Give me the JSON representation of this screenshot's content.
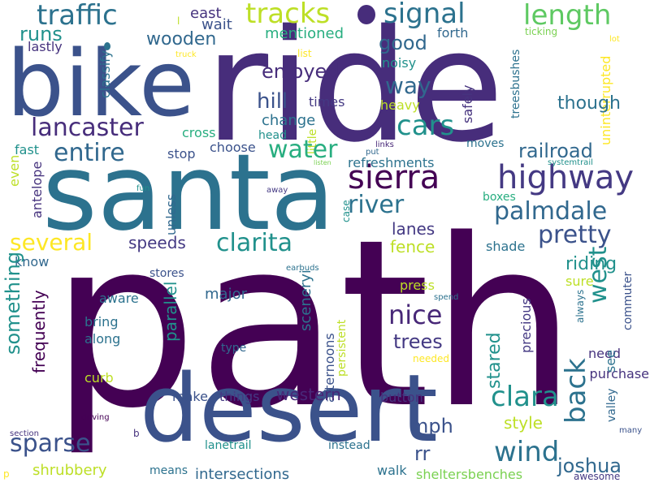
{
  "words": [
    {
      "text": "path",
      "color": "#440154"
    },
    {
      "text": "ride",
      "color": "#472d7b"
    },
    {
      "text": "santa",
      "color": "#2c728e"
    },
    {
      "text": "desert",
      "color": "#3b528b"
    },
    {
      "text": "bike",
      "color": "#3b528b"
    },
    {
      "text": "highway",
      "color": "#443983"
    },
    {
      "text": "sierra",
      "color": "#440154"
    },
    {
      "text": "traffic",
      "color": "#2c728e"
    },
    {
      "text": "tracks",
      "color": "#bddf26"
    },
    {
      "text": "signal",
      "color": "#2c728e"
    },
    {
      "text": "length",
      "color": "#5ec962"
    },
    {
      "text": "wooden",
      "color": "#31688e"
    },
    {
      "text": "runs",
      "color": "#21918c"
    },
    {
      "text": "east",
      "color": "#46337e"
    },
    {
      "text": "wait",
      "color": "#3b528b"
    },
    {
      "text": "mentioned",
      "color": "#28ae80"
    },
    {
      "text": "good",
      "color": "#31688e"
    },
    {
      "text": "forth",
      "color": "#31688e"
    },
    {
      "text": "ticking",
      "color": "#7ad151"
    },
    {
      "text": "lastly",
      "color": "#46337e"
    },
    {
      "text": "classify",
      "color": "#2c728e"
    },
    {
      "text": "list",
      "color": "#fde725"
    },
    {
      "text": "noisy",
      "color": "#21918c"
    },
    {
      "text": "lot",
      "color": "#fde725"
    },
    {
      "text": "truck",
      "color": "#fde725"
    },
    {
      "text": "enjoyed",
      "color": "#472d7b"
    },
    {
      "text": "way",
      "color": "#31688e"
    },
    {
      "text": "treesbushes",
      "color": "#2c728e"
    },
    {
      "text": "uninterrupted",
      "color": "#fde725"
    },
    {
      "text": "hill",
      "color": "#3b528b"
    },
    {
      "text": "times",
      "color": "#443983"
    },
    {
      "text": "heavy",
      "color": "#bddf26"
    },
    {
      "text": "safely",
      "color": "#46337e"
    },
    {
      "text": "though",
      "color": "#2c728e"
    },
    {
      "text": "change",
      "color": "#2c728e"
    },
    {
      "text": "lancaster",
      "color": "#472d7b"
    },
    {
      "text": "cross",
      "color": "#28ae80"
    },
    {
      "text": "head",
      "color": "#21918c"
    },
    {
      "text": "little",
      "color": "#bddf26"
    },
    {
      "text": "entire",
      "color": "#31688e"
    },
    {
      "text": "water",
      "color": "#28ae80"
    },
    {
      "text": "cars",
      "color": "#21918c"
    },
    {
      "text": "fast",
      "color": "#21918c"
    },
    {
      "text": "choose",
      "color": "#3b528b"
    },
    {
      "text": "moves",
      "color": "#2c728e"
    },
    {
      "text": "railroad",
      "color": "#31688e"
    },
    {
      "text": "stop",
      "color": "#3b528b"
    },
    {
      "text": "links",
      "color": "#482878"
    },
    {
      "text": "put",
      "color": "#31688e"
    },
    {
      "text": "refreshments",
      "color": "#2c728e"
    },
    {
      "text": "listen",
      "color": "#7ad151"
    },
    {
      "text": "systemtrail",
      "color": "#21918c"
    },
    {
      "text": "even",
      "color": "#bddf26"
    },
    {
      "text": "antelope",
      "color": "#46337e"
    },
    {
      "text": "unless",
      "color": "#31688e"
    },
    {
      "text": "fun",
      "color": "#21918c"
    },
    {
      "text": "away",
      "color": "#443983"
    },
    {
      "text": "river",
      "color": "#2c728e"
    },
    {
      "text": "palmdale",
      "color": "#31688e"
    },
    {
      "text": "boxes",
      "color": "#28ae80"
    },
    {
      "text": "pretty",
      "color": "#3b528b"
    },
    {
      "text": "several",
      "color": "#fde725"
    },
    {
      "text": "clarita",
      "color": "#21918c"
    },
    {
      "text": "speeds",
      "color": "#443983"
    },
    {
      "text": "lanes",
      "color": "#443983"
    },
    {
      "text": "fence",
      "color": "#bddf26"
    },
    {
      "text": "case",
      "color": "#21918c"
    },
    {
      "text": "shade",
      "color": "#2c728e"
    },
    {
      "text": "know",
      "color": "#31688e"
    },
    {
      "text": "something",
      "color": "#21918c"
    },
    {
      "text": "stores",
      "color": "#3b528b"
    },
    {
      "text": "riding",
      "color": "#21918c"
    },
    {
      "text": "parallel",
      "color": "#21918c"
    },
    {
      "text": "earbuds",
      "color": "#2c728e"
    },
    {
      "text": "west",
      "color": "#21918c"
    },
    {
      "text": "nice",
      "color": "#482878"
    },
    {
      "text": "sceneryi",
      "color": "#2c728e"
    },
    {
      "text": "press",
      "color": "#bddf26"
    },
    {
      "text": "sure",
      "color": "#bddf26"
    },
    {
      "text": "frequently",
      "color": "#440154"
    },
    {
      "text": "aware",
      "color": "#2c728e"
    },
    {
      "text": "major",
      "color": "#31688e"
    },
    {
      "text": "spend",
      "color": "#2c728e"
    },
    {
      "text": "precious",
      "color": "#443983"
    },
    {
      "text": "always",
      "color": "#2c728e"
    },
    {
      "text": "commuter",
      "color": "#3b528b"
    },
    {
      "text": "bring",
      "color": "#2c728e"
    },
    {
      "text": "along",
      "color": "#2c728e"
    },
    {
      "text": "trees",
      "color": "#443983"
    },
    {
      "text": "stared",
      "color": "#21918c"
    },
    {
      "text": "afternoons",
      "color": "#3b528b"
    },
    {
      "text": "persistent",
      "color": "#bddf26"
    },
    {
      "text": "type",
      "color": "#31688e"
    },
    {
      "text": "needed",
      "color": "#fde725"
    },
    {
      "text": "need",
      "color": "#46337e"
    },
    {
      "text": "purchase",
      "color": "#46337e"
    },
    {
      "text": "curb",
      "color": "#bddf26"
    },
    {
      "text": "make",
      "color": "#3b528b"
    },
    {
      "text": "things",
      "color": "#443983"
    },
    {
      "text": "western",
      "color": "#482878"
    },
    {
      "text": "button",
      "color": "#46337e"
    },
    {
      "text": "clara",
      "color": "#21918c"
    },
    {
      "text": "back",
      "color": "#2c728e"
    },
    {
      "text": "see",
      "color": "#2c728e"
    },
    {
      "text": "valley",
      "color": "#31688e"
    },
    {
      "text": "style",
      "color": "#bddf26"
    },
    {
      "text": "driving",
      "color": "#440154"
    },
    {
      "text": "sparse",
      "color": "#3b528b"
    },
    {
      "text": "mph",
      "color": "#3b528b"
    },
    {
      "text": "wind",
      "color": "#2c728e"
    },
    {
      "text": "many",
      "color": "#3b528b"
    },
    {
      "text": "section",
      "color": "#46337e"
    },
    {
      "text": "b",
      "color": "#46337e"
    },
    {
      "text": "lanetrail",
      "color": "#21918c"
    },
    {
      "text": "instead",
      "color": "#2c728e"
    },
    {
      "text": "rr",
      "color": "#3b528b"
    },
    {
      "text": "joshua",
      "color": "#31688e"
    },
    {
      "text": "shrubbery",
      "color": "#bddf26"
    },
    {
      "text": "means",
      "color": "#2c728e"
    },
    {
      "text": "walk",
      "color": "#2c728e"
    },
    {
      "text": "sheltersbenches",
      "color": "#7ad151"
    },
    {
      "text": "awesome",
      "color": "#443983"
    },
    {
      "text": "intersections",
      "color": "#31688e"
    },
    {
      "text": "p",
      "color": "#fde725"
    },
    {
      "text": "l",
      "color": "#bddf26"
    }
  ],
  "dots": [
    {
      "color": "#472d7b"
    },
    {
      "color": "#2c728e"
    }
  ]
}
